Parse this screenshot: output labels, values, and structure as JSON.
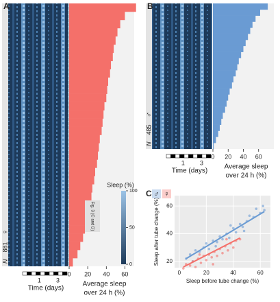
{
  "chart_data": [
    {
      "type": "bar",
      "orientation": "horizontal",
      "panel": "A",
      "color": "#f4706a",
      "background": "#f2f2f2",
      "values": [
        72,
        60,
        55,
        52,
        50,
        48,
        47,
        45,
        44,
        42,
        41,
        40,
        38,
        37,
        36,
        35,
        33,
        32,
        31,
        30,
        28,
        27,
        25,
        24,
        22,
        21,
        19,
        17,
        15,
        12,
        9,
        4
      ],
      "xlim": [
        0,
        70
      ],
      "xticks": [
        0,
        20,
        40,
        60
      ],
      "xlabel_lines": [
        "Average sleep",
        "over 24 h (%)"
      ],
      "n_label": "N",
      "n_value": 881,
      "sex": "♀",
      "time_label": "Time (days)",
      "time_lim": [
        -0.8,
        4
      ],
      "time_ticks": [
        1,
        3
      ],
      "colorbar": {
        "label": "Sleep (%)",
        "lim": [
          0,
          100
        ],
        "ticks": [
          0,
          50,
          100
        ]
      },
      "annotation": "Fig. 3 (C and D)"
    },
    {
      "type": "bar",
      "orientation": "horizontal",
      "panel": "B",
      "color": "#6a9bd3",
      "background": "#f2f2f2",
      "values": [
        72,
        62,
        56,
        52,
        49,
        46,
        43,
        40,
        37,
        34,
        32,
        30,
        27,
        25,
        22,
        20,
        18,
        16,
        13,
        11,
        9,
        7,
        4,
        1
      ],
      "xlim": [
        0,
        80
      ],
      "xticks": [
        0,
        20,
        40,
        60
      ],
      "xlabel_lines": [
        "Average sleep",
        "over 24 h (%)"
      ],
      "n_label": "N",
      "n_value": 485,
      "sex": "♂",
      "time_label": "Time (days)",
      "time_lim": [
        -0.8,
        4
      ],
      "time_ticks": [
        1,
        3
      ]
    },
    {
      "type": "scatter",
      "panel": "C",
      "xlabel": "Sleep before tube change (%)",
      "ylabel": "Sleep after tube change (%)",
      "xlim": [
        -3.5,
        67.5
      ],
      "ylim": [
        15.5,
        67.5
      ],
      "xticks": [
        0,
        20,
        40,
        60
      ],
      "yticks": [
        20,
        40,
        60
      ],
      "grid": true,
      "series": [
        {
          "name": "♂",
          "color": "#6a9bd3",
          "x": [
            5,
            8,
            10,
            12,
            15,
            18,
            20,
            22,
            25,
            27,
            30,
            32,
            35,
            37,
            40,
            42,
            45,
            47,
            50,
            52,
            55,
            57,
            60,
            62,
            63,
            48,
            38,
            28
          ],
          "y": [
            22,
            25,
            20,
            28,
            27,
            30,
            33,
            29,
            35,
            31,
            38,
            36,
            40,
            37,
            44,
            41,
            47,
            45,
            49,
            53,
            52,
            58,
            55,
            60,
            57,
            42,
            46,
            34
          ],
          "fit_x": [
            5,
            63
          ],
          "fit_y": [
            22,
            56
          ]
        },
        {
          "name": "♀",
          "color": "#f4706a",
          "x": [
            3,
            5,
            8,
            10,
            12,
            14,
            16,
            18,
            20,
            22,
            24,
            26,
            28,
            30,
            32,
            34,
            36,
            38,
            40,
            42,
            45,
            15,
            25,
            35
          ],
          "y": [
            15,
            18,
            17,
            20,
            16,
            22,
            19,
            24,
            21,
            25,
            23,
            27,
            24,
            29,
            26,
            31,
            28,
            33,
            30,
            35,
            36,
            25,
            18,
            36
          ],
          "fit_x": [
            3,
            45
          ],
          "fit_y": [
            16,
            37
          ]
        }
      ]
    }
  ]
}
